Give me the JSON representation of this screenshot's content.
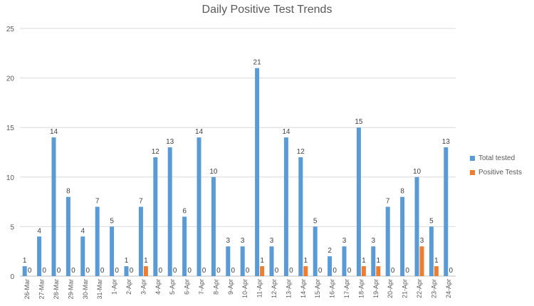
{
  "chart_data": {
    "type": "bar",
    "title": "Daily Positive Test Trends",
    "xlabel": "",
    "ylabel": "",
    "ylim": [
      0,
      25
    ],
    "yticks": [
      0,
      5,
      10,
      15,
      20,
      25
    ],
    "grid": true,
    "legend_position": "right",
    "categories": [
      "26-Mar",
      "27-Mar",
      "28-Mar",
      "29-Mar",
      "30-Mar",
      "31-Mar",
      "1-Apr",
      "2-Apr",
      "3-Apr",
      "4-Apr",
      "5-Apr",
      "6-Apr",
      "7-Apr",
      "8-Apr",
      "9-Apr",
      "10-Apr",
      "11-Apr",
      "12-Apr",
      "13-Apr",
      "14-Apr",
      "15-Apr",
      "16-Apr",
      "17-Apr",
      "18-Apr",
      "19-Apr",
      "20-Apr",
      "21-Apr",
      "22-Apr",
      "23-Apr",
      "24-Apr"
    ],
    "series": [
      {
        "name": "Total tested",
        "color": "#5b9bd5",
        "values": [
          1,
          4,
          14,
          8,
          4,
          7,
          5,
          1,
          7,
          12,
          13,
          6,
          14,
          10,
          3,
          3,
          21,
          3,
          14,
          12,
          5,
          2,
          3,
          15,
          3,
          7,
          8,
          10,
          5,
          13
        ]
      },
      {
        "name": "Positive Tests",
        "color": "#ed7d31",
        "values": [
          0,
          0,
          0,
          0,
          0,
          0,
          0,
          0,
          1,
          0,
          0,
          0,
          0,
          0,
          0,
          0,
          1,
          0,
          0,
          1,
          0,
          0,
          0,
          1,
          1,
          0,
          0,
          3,
          1,
          0
        ]
      }
    ]
  }
}
